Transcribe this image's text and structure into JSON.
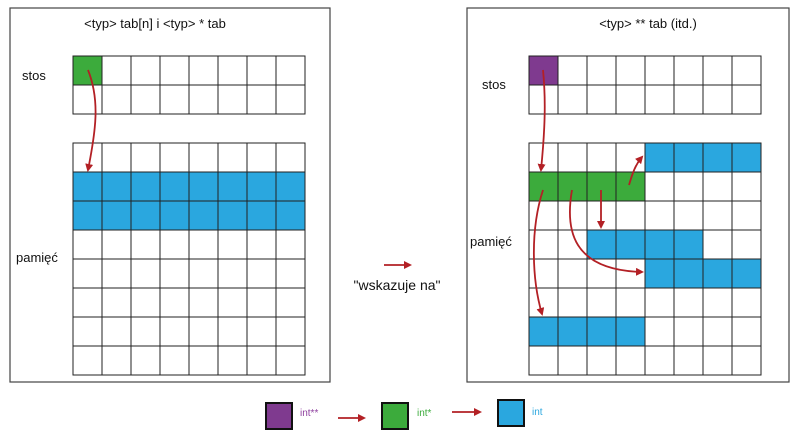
{
  "colors": {
    "stack_pointer_2": "#7f3a8f",
    "pointer": "#3cab3c",
    "int": "#2aa7df",
    "arrow": "#b32025",
    "grid": "#222222",
    "legend_int_pp_text": "#8e3f9e",
    "legend_int_p_text": "#3cab3c",
    "legend_int_text": "#2aa7df"
  },
  "left_panel": {
    "title": "<typ> tab[n]  i <typ> * tab",
    "stack_label": "stos",
    "memory_label": "pamięć"
  },
  "right_panel": {
    "title": "<typ> ** tab (itd.)",
    "stack_label": "stos",
    "memory_label": "pamięć"
  },
  "middle": {
    "arrow_caption": "\"wskazuje na\""
  },
  "legend": {
    "items": [
      {
        "label": "int**",
        "icon": "purple-square-icon"
      },
      {
        "label": "int*",
        "icon": "green-square-icon"
      },
      {
        "label": "int",
        "icon": "blue-square-icon"
      }
    ]
  }
}
